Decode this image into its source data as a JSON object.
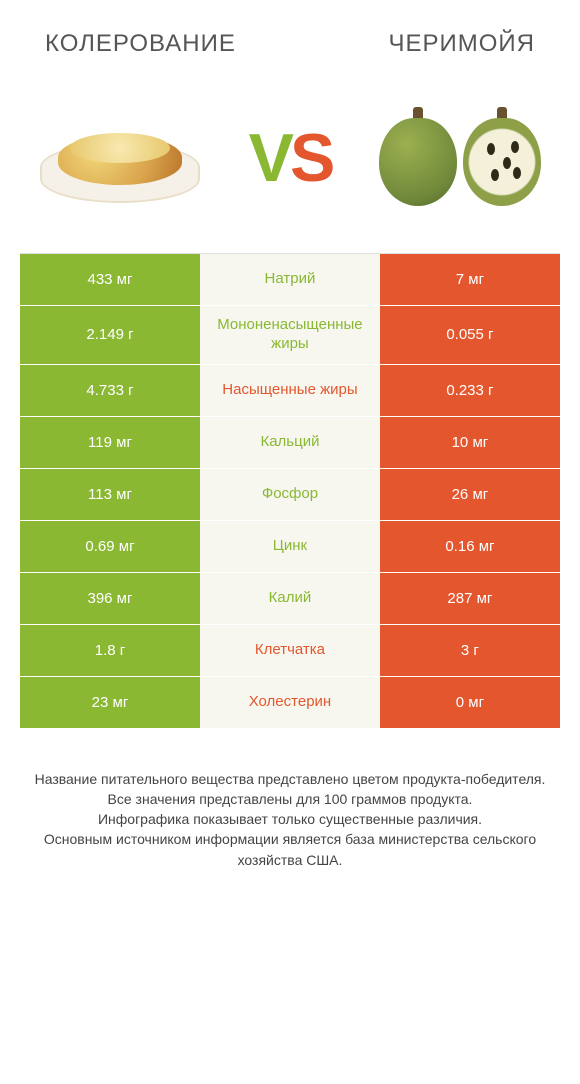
{
  "titles": {
    "left": "КОЛЕРОВАНИЕ",
    "right": "ЧЕРИМОЙЯ"
  },
  "vs": {
    "v": "V",
    "s": "S"
  },
  "colors": {
    "left": "#8ab833",
    "right": "#e4572e",
    "mid_bg": "#f7f7f0",
    "row_border": "#ffffff",
    "text_light": "#ffffff"
  },
  "table": {
    "type": "comparison-table",
    "columns": [
      "left_value",
      "nutrient",
      "right_value"
    ],
    "cell_fontsize": 15,
    "rows": [
      {
        "left": "433 мг",
        "label": "Натрий",
        "right": "7 мг",
        "winner": "left"
      },
      {
        "left": "2.149 г",
        "label": "Мононенасыщенные жиры",
        "right": "0.055 г",
        "winner": "left"
      },
      {
        "left": "4.733 г",
        "label": "Насыщенные жиры",
        "right": "0.233 г",
        "winner": "right"
      },
      {
        "left": "119 мг",
        "label": "Кальций",
        "right": "10 мг",
        "winner": "left"
      },
      {
        "left": "113 мг",
        "label": "Фосфор",
        "right": "26 мг",
        "winner": "left"
      },
      {
        "left": "0.69 мг",
        "label": "Цинк",
        "right": "0.16 мг",
        "winner": "left"
      },
      {
        "left": "396 мг",
        "label": "Калий",
        "right": "287 мг",
        "winner": "left"
      },
      {
        "left": "1.8 г",
        "label": "Клетчатка",
        "right": "3 г",
        "winner": "right"
      },
      {
        "left": "23 мг",
        "label": "Холестерин",
        "right": "0 мг",
        "winner": "right"
      }
    ]
  },
  "footer": {
    "lines": [
      "Название питательного вещества представлено цветом продукта-победителя.",
      "Все значения представлены для 100 граммов продукта.",
      "Инфографика показывает только существенные различия.",
      "Основным источником информации является база министерства сельского хозяйства США."
    ]
  }
}
